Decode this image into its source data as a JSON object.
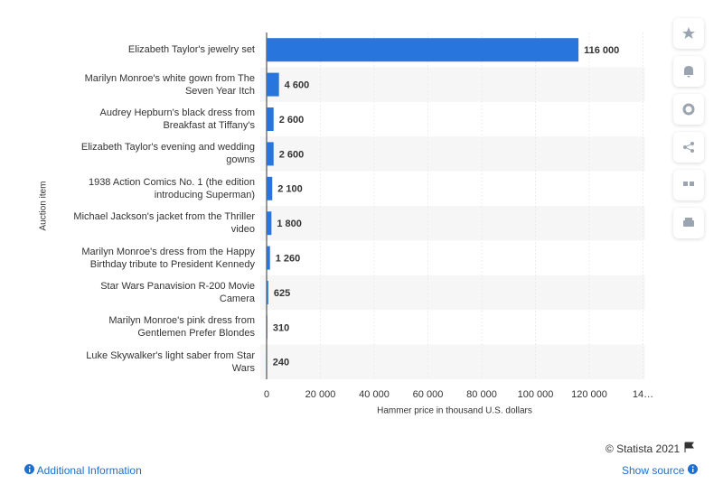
{
  "chart_data": {
    "type": "bar",
    "categories": [
      "Elizabeth Taylor's jewelry set",
      "Marilyn Monroe's white gown from The Seven Year Itch",
      "Audrey Hepburn's black dress from Breakfast at Tiffany's",
      "Elizabeth Taylor's evening and wedding gowns",
      "1938 Action Comics No. 1 (the edition introducing Superman)",
      "Michael Jackson's jacket from the Thriller video",
      "Marilyn Monroe's dress from the Happy Birthday tribute to President Kennedy",
      "Star Wars Panavision R-200 Movie Camera",
      "Marilyn Monroe's pink dress from Gentlemen Prefer Blondes",
      "Luke Skywalker's light saber from Star Wars"
    ],
    "values": [
      116000,
      4600,
      2600,
      2600,
      2100,
      1800,
      1260,
      625,
      310,
      240
    ],
    "value_labels": [
      "116 000",
      "4 600",
      "2 600",
      "2 600",
      "2 100",
      "1 800",
      "1 260",
      "625",
      "310",
      "240"
    ],
    "color": "#2876dd",
    "xlim": [
      0,
      140000
    ],
    "xticks": [
      0,
      {
        "value": 20000,
        "label": "20 000"
      },
      {
        "value": 40000,
        "label": "40 000"
      },
      {
        "value": 60000,
        "label": "60 000"
      },
      {
        "value": 80000,
        "label": "80 000"
      },
      {
        "value": 100000,
        "label": "100 000"
      },
      {
        "value": 120000,
        "label": "120 000"
      },
      {
        "value": 140000,
        "label": "14…"
      }
    ],
    "x_label": "Hammer price in thousand U.S. dollars",
    "y_label": "Auction item",
    "grid": true
  },
  "footer": {
    "credit": "© Statista 2021",
    "additional_information": "Additional Information",
    "show_source": "Show source"
  }
}
